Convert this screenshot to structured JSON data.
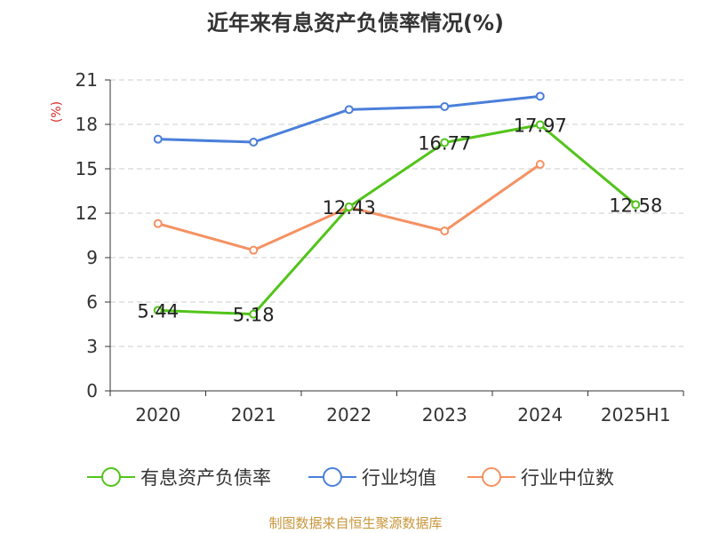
{
  "chart_data": {
    "type": "line",
    "title": "近年来有息资产负债率情况(%)",
    "ylabel": "(%)",
    "categories": [
      "2020",
      "2021",
      "2022",
      "2023",
      "2024",
      "2025H1"
    ],
    "ylim": [
      0,
      21
    ],
    "yticks": [
      0,
      3,
      6,
      9,
      12,
      15,
      18,
      21
    ],
    "grid": true,
    "legend_position": "bottom",
    "series": [
      {
        "name": "有息资产负债率",
        "color": "#52c41a",
        "values": [
          5.44,
          5.18,
          12.43,
          16.77,
          17.97,
          12.58
        ],
        "labels": [
          "5.44",
          "5.18",
          "12.43",
          "16.77",
          "17.97",
          "12.58"
        ]
      },
      {
        "name": "行业均值",
        "color": "#4a7fda",
        "values": [
          17.0,
          16.8,
          19.0,
          19.2,
          19.9,
          null
        ]
      },
      {
        "name": "行业中位数",
        "color": "#f59162",
        "values": [
          11.3,
          9.5,
          12.4,
          10.8,
          15.3,
          null
        ]
      }
    ]
  },
  "source": "制图数据来自恒生聚源数据库"
}
